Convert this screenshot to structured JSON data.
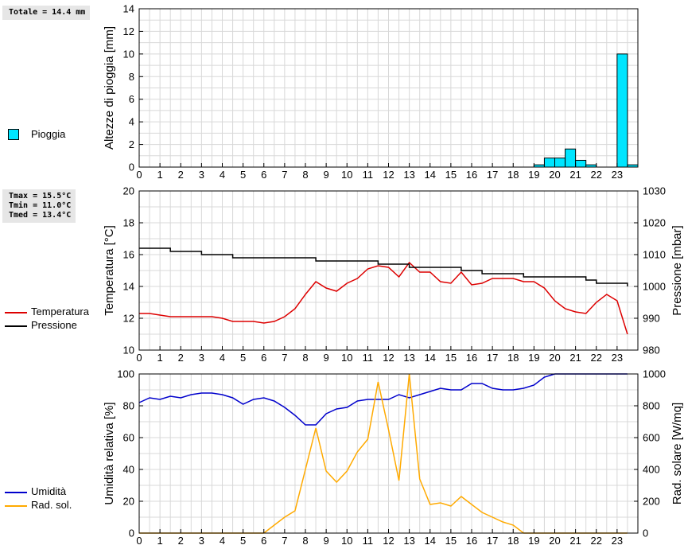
{
  "stats": {
    "rain_total": "Totale = 14.4 mm",
    "tmax": "Tmax = 15.5°C",
    "tmin": "Tmin = 11.0°C",
    "tmed": "Tmed = 13.4°C"
  },
  "legend": {
    "rain": {
      "label": "Pioggia",
      "color": "#00e5ff"
    },
    "temperature": {
      "label": "Temperatura",
      "color": "#dd0000"
    },
    "pressure": {
      "label": "Pressione",
      "color": "#000000"
    },
    "humidity": {
      "label": "Umidità",
      "color": "#0000cc"
    },
    "solar": {
      "label": "Rad. sol.",
      "color": "#ffaa00"
    }
  },
  "chart_data": [
    {
      "type": "bar",
      "ylabel": "Altezze di pioggia [mm]",
      "ylim": [
        0,
        14
      ],
      "yticks": [
        0,
        2,
        4,
        6,
        8,
        10,
        12,
        14
      ],
      "xticks": [
        0,
        1,
        2,
        3,
        4,
        5,
        6,
        7,
        8,
        9,
        10,
        11,
        12,
        13,
        14,
        15,
        16,
        17,
        18,
        19,
        20,
        21,
        22,
        23
      ],
      "xlim": [
        0,
        24
      ],
      "grid": true,
      "series": [
        {
          "name": "Pioggia",
          "color": "#00e5ff",
          "x": [
            19.0,
            19.5,
            20.0,
            20.5,
            21.0,
            21.5,
            22.0,
            23.0,
            23.5
          ],
          "values": [
            0.2,
            0.8,
            0.8,
            1.6,
            0.6,
            0.2,
            0.0,
            10.0,
            0.2
          ],
          "bin_width": 0.5
        }
      ]
    },
    {
      "type": "line",
      "ylabel": "Temperatura [°C]",
      "ylabel_right": "Pressione [mbar]",
      "ylim": [
        10,
        20
      ],
      "yticks": [
        10,
        12,
        14,
        16,
        18,
        20
      ],
      "ylim_right": [
        980,
        1030
      ],
      "yticks_right": [
        980,
        990,
        1000,
        1010,
        1020,
        1030
      ],
      "xticks": [
        0,
        1,
        2,
        3,
        4,
        5,
        6,
        7,
        8,
        9,
        10,
        11,
        12,
        13,
        14,
        15,
        16,
        17,
        18,
        19,
        20,
        21,
        22,
        23
      ],
      "xlim": [
        0,
        24
      ],
      "grid": true,
      "series": [
        {
          "name": "Temperatura",
          "color": "#dd0000",
          "axis": "left",
          "x": [
            0,
            0.5,
            1,
            1.5,
            2,
            2.5,
            3,
            3.5,
            4,
            4.5,
            5,
            5.5,
            6,
            6.5,
            7,
            7.5,
            8,
            8.5,
            9,
            9.5,
            10,
            10.5,
            11,
            11.5,
            12,
            12.5,
            13,
            13.5,
            14,
            14.5,
            15,
            15.5,
            16,
            16.5,
            17,
            17.5,
            18,
            18.5,
            19,
            19.5,
            20,
            20.5,
            21,
            21.5,
            22,
            22.5,
            23,
            23.5
          ],
          "values": [
            12.3,
            12.3,
            12.2,
            12.1,
            12.1,
            12.1,
            12.1,
            12.1,
            12.0,
            11.8,
            11.8,
            11.8,
            11.7,
            11.8,
            12.1,
            12.6,
            13.5,
            14.3,
            13.9,
            13.7,
            14.2,
            14.5,
            15.1,
            15.3,
            15.2,
            14.6,
            15.5,
            14.9,
            14.9,
            14.3,
            14.2,
            14.9,
            14.1,
            14.2,
            14.5,
            14.5,
            14.5,
            14.3,
            14.3,
            13.9,
            13.1,
            12.6,
            12.4,
            12.3,
            13.0,
            13.5,
            13.1,
            11.0
          ]
        },
        {
          "name": "Pressione",
          "color": "#000000",
          "axis": "right",
          "x": [
            0,
            1,
            1.5,
            2.5,
            3,
            4,
            4.5,
            5,
            7.5,
            8,
            8.5,
            11,
            11.5,
            12.5,
            13,
            15,
            15.5,
            16,
            16.5,
            18,
            18.5,
            20.5,
            21,
            21.5,
            22,
            23,
            23.5
          ],
          "values": [
            1012,
            1012,
            1011,
            1011,
            1010,
            1010,
            1009,
            1009,
            1009,
            1009,
            1008,
            1008,
            1007,
            1007,
            1006,
            1006,
            1005,
            1005,
            1004,
            1004,
            1003,
            1003,
            1003,
            1002,
            1001,
            1001,
            1000
          ]
        }
      ]
    },
    {
      "type": "line",
      "ylabel": "Umidità relativa [%]",
      "ylabel_right": "Rad. solare [W/mq]",
      "ylim": [
        0,
        100
      ],
      "yticks": [
        0,
        20,
        40,
        60,
        80,
        100
      ],
      "ylim_right": [
        0,
        1000
      ],
      "yticks_right": [
        0,
        200,
        400,
        600,
        800,
        1000
      ],
      "xticks": [
        0,
        1,
        2,
        3,
        4,
        5,
        6,
        7,
        8,
        9,
        10,
        11,
        12,
        13,
        14,
        15,
        16,
        17,
        18,
        19,
        20,
        21,
        22,
        23
      ],
      "xlim": [
        0,
        24
      ],
      "grid": true,
      "series": [
        {
          "name": "Umidità",
          "color": "#0000cc",
          "axis": "left",
          "x": [
            0,
            0.5,
            1,
            1.5,
            2,
            2.5,
            3,
            3.5,
            4,
            4.5,
            5,
            5.5,
            6,
            6.5,
            7,
            7.5,
            8,
            8.5,
            9,
            9.5,
            10,
            10.5,
            11,
            11.5,
            12,
            12.5,
            13,
            13.5,
            14,
            14.5,
            15,
            15.5,
            16,
            16.5,
            17,
            17.5,
            18,
            18.5,
            19,
            19.5,
            20,
            20.5,
            21,
            21.5,
            22,
            22.5,
            23,
            23.5
          ],
          "values": [
            82,
            85,
            84,
            86,
            85,
            87,
            88,
            88,
            87,
            85,
            81,
            84,
            85,
            83,
            79,
            74,
            68,
            68,
            75,
            78,
            79,
            83,
            84,
            84,
            84,
            87,
            85,
            87,
            89,
            91,
            90,
            90,
            94,
            94,
            91,
            90,
            90,
            91,
            93,
            98,
            100,
            100,
            100,
            100,
            100,
            100,
            100,
            100
          ]
        },
        {
          "name": "Rad. sol.",
          "color": "#ffaa00",
          "axis": "right",
          "x": [
            0,
            0.5,
            1,
            1.5,
            2,
            2.5,
            3,
            3.5,
            4,
            4.5,
            5,
            5.5,
            6,
            6.5,
            7,
            7.5,
            8,
            8.5,
            9,
            9.5,
            10,
            10.5,
            11,
            11.5,
            12,
            12.5,
            13,
            13.5,
            14,
            14.5,
            15,
            15.5,
            16,
            16.5,
            17,
            17.5,
            18,
            18.5,
            19,
            19.5,
            20,
            20.5,
            21,
            21.5,
            22,
            22.5,
            23,
            23.5
          ],
          "values": [
            0,
            0,
            0,
            0,
            0,
            0,
            0,
            0,
            0,
            0,
            0,
            0,
            0,
            50,
            100,
            140,
            400,
            660,
            390,
            320,
            390,
            510,
            590,
            950,
            650,
            330,
            1000,
            340,
            180,
            190,
            170,
            230,
            180,
            130,
            100,
            70,
            50,
            0,
            0,
            0,
            0,
            0,
            0,
            0,
            0,
            0,
            0,
            0
          ]
        }
      ]
    }
  ]
}
